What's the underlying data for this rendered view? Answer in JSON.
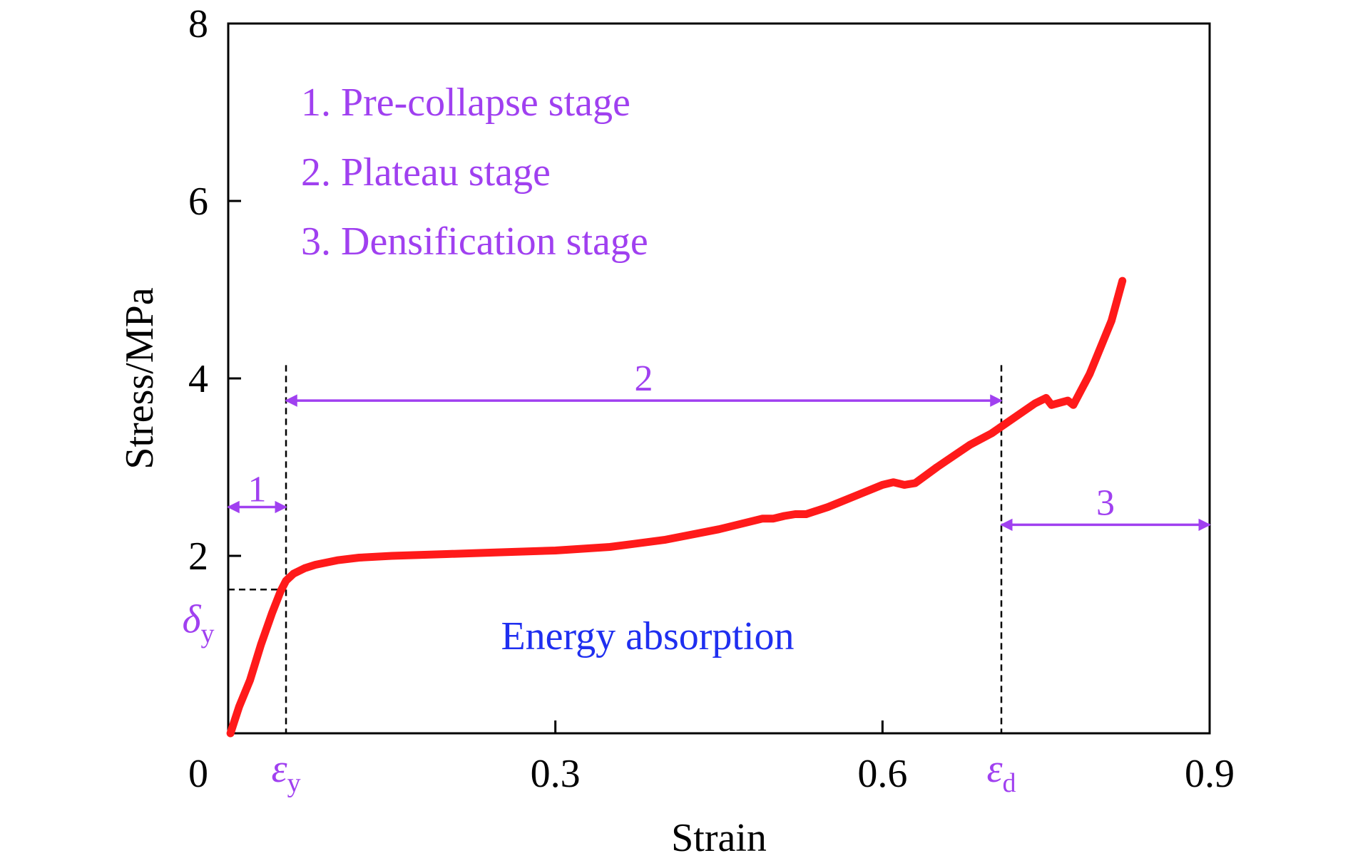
{
  "chart_data": {
    "type": "line",
    "title": "",
    "xlabel": "Strain",
    "ylabel": "Stress/MPa",
    "xlim": [
      0,
      0.9
    ],
    "ylim": [
      0,
      8
    ],
    "grid": false,
    "x_ticks": [
      {
        "value": 0,
        "label": "0"
      },
      {
        "value": 0.3,
        "label": "0.3"
      },
      {
        "value": 0.6,
        "label": "0.6"
      },
      {
        "value": 0.9,
        "label": "0.9"
      }
    ],
    "y_ticks": [
      {
        "value": 2,
        "label": "2"
      },
      {
        "value": 4,
        "label": "4"
      },
      {
        "value": 6,
        "label": "6"
      },
      {
        "value": 8,
        "label": "8"
      }
    ],
    "series": [
      {
        "color": "#ff1a1a",
        "x": [
          0.002,
          0.01,
          0.02,
          0.03,
          0.04,
          0.048,
          0.053,
          0.06,
          0.07,
          0.08,
          0.1,
          0.12,
          0.15,
          0.2,
          0.25,
          0.3,
          0.35,
          0.4,
          0.45,
          0.49,
          0.5,
          0.51,
          0.52,
          0.53,
          0.55,
          0.58,
          0.6,
          0.61,
          0.62,
          0.63,
          0.65,
          0.68,
          0.7,
          0.72,
          0.74,
          0.75,
          0.755,
          0.77,
          0.775,
          0.79,
          0.81,
          0.82
        ],
        "y": [
          0.0,
          0.3,
          0.6,
          1.0,
          1.35,
          1.6,
          1.72,
          1.8,
          1.86,
          1.9,
          1.95,
          1.98,
          2.0,
          2.02,
          2.04,
          2.06,
          2.1,
          2.18,
          2.3,
          2.42,
          2.42,
          2.45,
          2.47,
          2.47,
          2.55,
          2.7,
          2.8,
          2.83,
          2.8,
          2.82,
          3.0,
          3.25,
          3.38,
          3.55,
          3.72,
          3.78,
          3.7,
          3.75,
          3.7,
          4.05,
          4.65,
          5.1
        ]
      }
    ],
    "annotations": {
      "legend": [
        {
          "text": "1. Pre-collapse stage",
          "color": "#a040f0"
        },
        {
          "text": "2. Plateau stage",
          "color": "#a040f0"
        },
        {
          "text": "3. Densification stage",
          "color": "#a040f0"
        }
      ],
      "stage_1": {
        "label": "1",
        "x_from": 0,
        "x_to": 0.053,
        "y": 2.55,
        "color": "#a040f0"
      },
      "stage_2": {
        "label": "2",
        "x_from": 0.053,
        "x_to": 0.709,
        "y": 3.75,
        "color": "#a040f0"
      },
      "stage_3": {
        "label": "3",
        "x_from": 0.709,
        "x_to": 0.9,
        "y": 2.35,
        "color": "#a040f0"
      },
      "epsilon_y": {
        "symbol": "ε",
        "subscript": "y",
        "x": 0.053,
        "line_top": 4.15,
        "color": "#a040f0"
      },
      "epsilon_d": {
        "symbol": "ε",
        "subscript": "d",
        "x": 0.709,
        "line_top": 4.15,
        "color": "#a040f0"
      },
      "delta_y": {
        "symbol": "δ",
        "subscript": "y",
        "y": 1.62,
        "color": "#a040f0"
      },
      "energy_label": {
        "text": "Energy absorption",
        "color": "#1f2ff0"
      }
    }
  }
}
